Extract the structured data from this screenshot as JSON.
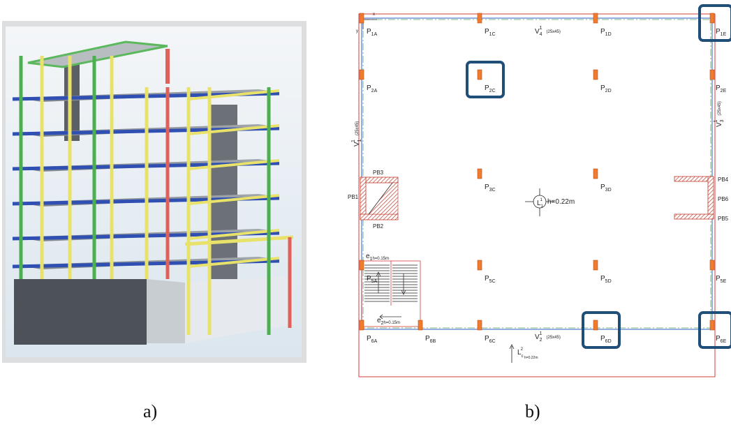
{
  "captions": {
    "a": "a)",
    "b": "b)"
  },
  "plan": {
    "axis_x": "x",
    "axis_y": "y",
    "columns": [
      {
        "id": "1A",
        "main": "P",
        "sub": "1A"
      },
      {
        "id": "1C",
        "main": "P",
        "sub": "1C"
      },
      {
        "id": "1D",
        "main": "P",
        "sub": "1D"
      },
      {
        "id": "1E",
        "main": "P",
        "sub": "1E"
      },
      {
        "id": "2A",
        "main": "P",
        "sub": "2A"
      },
      {
        "id": "2C",
        "main": "P",
        "sub": "2C"
      },
      {
        "id": "2D",
        "main": "P",
        "sub": "2D"
      },
      {
        "id": "2E",
        "main": "P",
        "sub": "2E"
      },
      {
        "id": "3C",
        "main": "P",
        "sub": "3C"
      },
      {
        "id": "3D",
        "main": "P",
        "sub": "3D"
      },
      {
        "id": "5A",
        "main": "P",
        "sub": "5A"
      },
      {
        "id": "5C",
        "main": "P",
        "sub": "5C"
      },
      {
        "id": "5D",
        "main": "P",
        "sub": "5D"
      },
      {
        "id": "5E",
        "main": "P",
        "sub": "5E"
      },
      {
        "id": "6A",
        "main": "P",
        "sub": "6A"
      },
      {
        "id": "6B",
        "main": "P",
        "sub": "6B"
      },
      {
        "id": "6C",
        "main": "P",
        "sub": "6C"
      },
      {
        "id": "6D",
        "main": "P",
        "sub": "6D"
      },
      {
        "id": "6E",
        "main": "P",
        "sub": "6E"
      }
    ],
    "beams": {
      "v4": {
        "main": "V",
        "sup": "1",
        "sub": "4",
        "size": "(25x45)"
      },
      "v2": {
        "main": "V",
        "sup": "1",
        "sub": "2",
        "size": "(25x45)"
      },
      "v1": {
        "main": "V",
        "sup": "1",
        "sub": "1",
        "size": "(25x45)"
      },
      "v3": {
        "main": "V",
        "sup": "1",
        "sub": "3",
        "size": "(25x45)"
      }
    },
    "walls": [
      "PB1",
      "PB2",
      "PB3",
      "PB4",
      "PB5",
      "PB6"
    ],
    "slab": {
      "main": "L",
      "sup": "1",
      "sub": "1",
      "h": "h=0.22m"
    },
    "stair_e1": {
      "main": "e",
      "sub": "1",
      "h": "h=0.15m"
    },
    "stair_e2": {
      "main": "e",
      "sub": "2",
      "h": "h=0.15m"
    },
    "cantilever": {
      "main": "L",
      "sup": "2",
      "sub": "c",
      "h": "h=0.22m"
    },
    "highlighted": [
      "1E",
      "2C",
      "6D",
      "6E"
    ],
    "colors": {
      "column": "#f07a2e",
      "highlight": "#1f4e79",
      "wall_hatch": "#c0392b",
      "outline_red": "#d63b3b",
      "beam_blue": "#4a7bd0",
      "axis_green": "#5aa05a"
    }
  }
}
